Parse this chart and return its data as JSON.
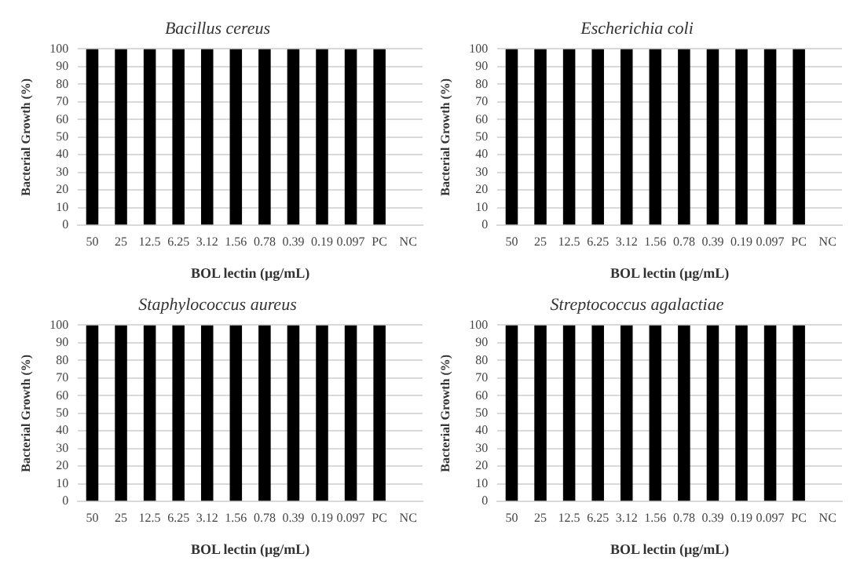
{
  "chart_data": [
    {
      "type": "bar",
      "title": "Bacillus cereus",
      "xlabel": "BOL lectin (µg/mL)",
      "ylabel": "Bacterial Growth (%)",
      "categories": [
        "50",
        "25",
        "12.5",
        "6.25",
        "3.12",
        "1.56",
        "0.78",
        "0.39",
        "0.19",
        "0.097",
        "PC",
        "NC"
      ],
      "values": [
        100,
        100,
        100,
        100,
        100,
        100,
        100,
        100,
        100,
        100,
        100,
        0
      ],
      "color": "#000000",
      "ylim": [
        0,
        100
      ],
      "yticks": [
        0,
        10,
        20,
        30,
        40,
        50,
        60,
        70,
        80,
        90,
        100
      ],
      "grid": "y"
    },
    {
      "type": "bar",
      "title": "Escherichia coli",
      "xlabel": "BOL lectin (µg/mL)",
      "ylabel": "Bacterial Growth (%)",
      "categories": [
        "50",
        "25",
        "12.5",
        "6.25",
        "3.12",
        "1.56",
        "0.78",
        "0.39",
        "0.19",
        "0.097",
        "PC",
        "NC"
      ],
      "values": [
        100,
        100,
        100,
        100,
        100,
        100,
        100,
        100,
        100,
        100,
        100,
        0
      ],
      "color": "#000000",
      "ylim": [
        0,
        100
      ],
      "yticks": [
        0,
        10,
        20,
        30,
        40,
        50,
        60,
        70,
        80,
        90,
        100
      ],
      "grid": "y"
    },
    {
      "type": "bar",
      "title": "Staphylococcus aureus",
      "xlabel": "BOL lectin (µg/mL)",
      "ylabel": "Bacterial Growth (%)",
      "categories": [
        "50",
        "25",
        "12.5",
        "6.25",
        "3.12",
        "1.56",
        "0.78",
        "0.39",
        "0.19",
        "0.097",
        "PC",
        "NC"
      ],
      "values": [
        100,
        100,
        100,
        100,
        100,
        100,
        100,
        100,
        100,
        100,
        100,
        0
      ],
      "color": "#000000",
      "ylim": [
        0,
        100
      ],
      "yticks": [
        0,
        10,
        20,
        30,
        40,
        50,
        60,
        70,
        80,
        90,
        100
      ],
      "grid": "y"
    },
    {
      "type": "bar",
      "title": "Streptococcus agalactiae",
      "xlabel": "BOL lectin (µg/mL)",
      "ylabel": "Bacterial Growth (%)",
      "categories": [
        "50",
        "25",
        "12.5",
        "6.25",
        "3.12",
        "1.56",
        "0.78",
        "0.39",
        "0.19",
        "0.097",
        "PC",
        "NC"
      ],
      "values": [
        100,
        100,
        100,
        100,
        100,
        100,
        100,
        100,
        100,
        100,
        100,
        0
      ],
      "color": "#000000",
      "ylim": [
        0,
        100
      ],
      "yticks": [
        0,
        10,
        20,
        30,
        40,
        50,
        60,
        70,
        80,
        90,
        100
      ],
      "grid": "y"
    }
  ]
}
